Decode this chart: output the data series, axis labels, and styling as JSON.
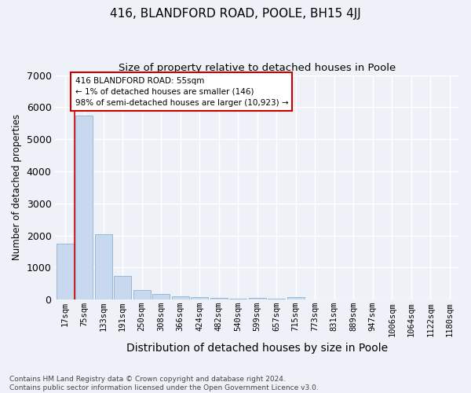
{
  "title": "416, BLANDFORD ROAD, POOLE, BH15 4JJ",
  "subtitle": "Size of property relative to detached houses in Poole",
  "xlabel": "Distribution of detached houses by size in Poole",
  "ylabel": "Number of detached properties",
  "footnote": "Contains HM Land Registry data © Crown copyright and database right 2024.\nContains public sector information licensed under the Open Government Licence v3.0.",
  "bar_labels": [
    "17sqm",
    "75sqm",
    "133sqm",
    "191sqm",
    "250sqm",
    "308sqm",
    "366sqm",
    "424sqm",
    "482sqm",
    "540sqm",
    "599sqm",
    "657sqm",
    "715sqm",
    "773sqm",
    "831sqm",
    "889sqm",
    "947sqm",
    "1006sqm",
    "1064sqm",
    "1122sqm",
    "1180sqm"
  ],
  "bar_values": [
    1750,
    5750,
    2050,
    750,
    300,
    175,
    90,
    65,
    50,
    40,
    60,
    35,
    70,
    0,
    0,
    0,
    0,
    0,
    0,
    0,
    0
  ],
  "bar_color": "#c8d8ee",
  "bar_edge_color": "#7aa8cc",
  "annotation_box_text": "416 BLANDFORD ROAD: 55sqm\n← 1% of detached houses are smaller (146)\n98% of semi-detached houses are larger (10,923) →",
  "annotation_box_color": "#ffffff",
  "annotation_box_edge": "#cc0000",
  "annotation_line_color": "#cc0000",
  "ylim": [
    0,
    7000
  ],
  "background_color": "#eef2f8",
  "grid_color": "#ffffff",
  "title_fontsize": 11,
  "subtitle_fontsize": 9.5,
  "tick_fontsize": 7.5,
  "ylabel_fontsize": 8.5,
  "xlabel_fontsize": 10
}
